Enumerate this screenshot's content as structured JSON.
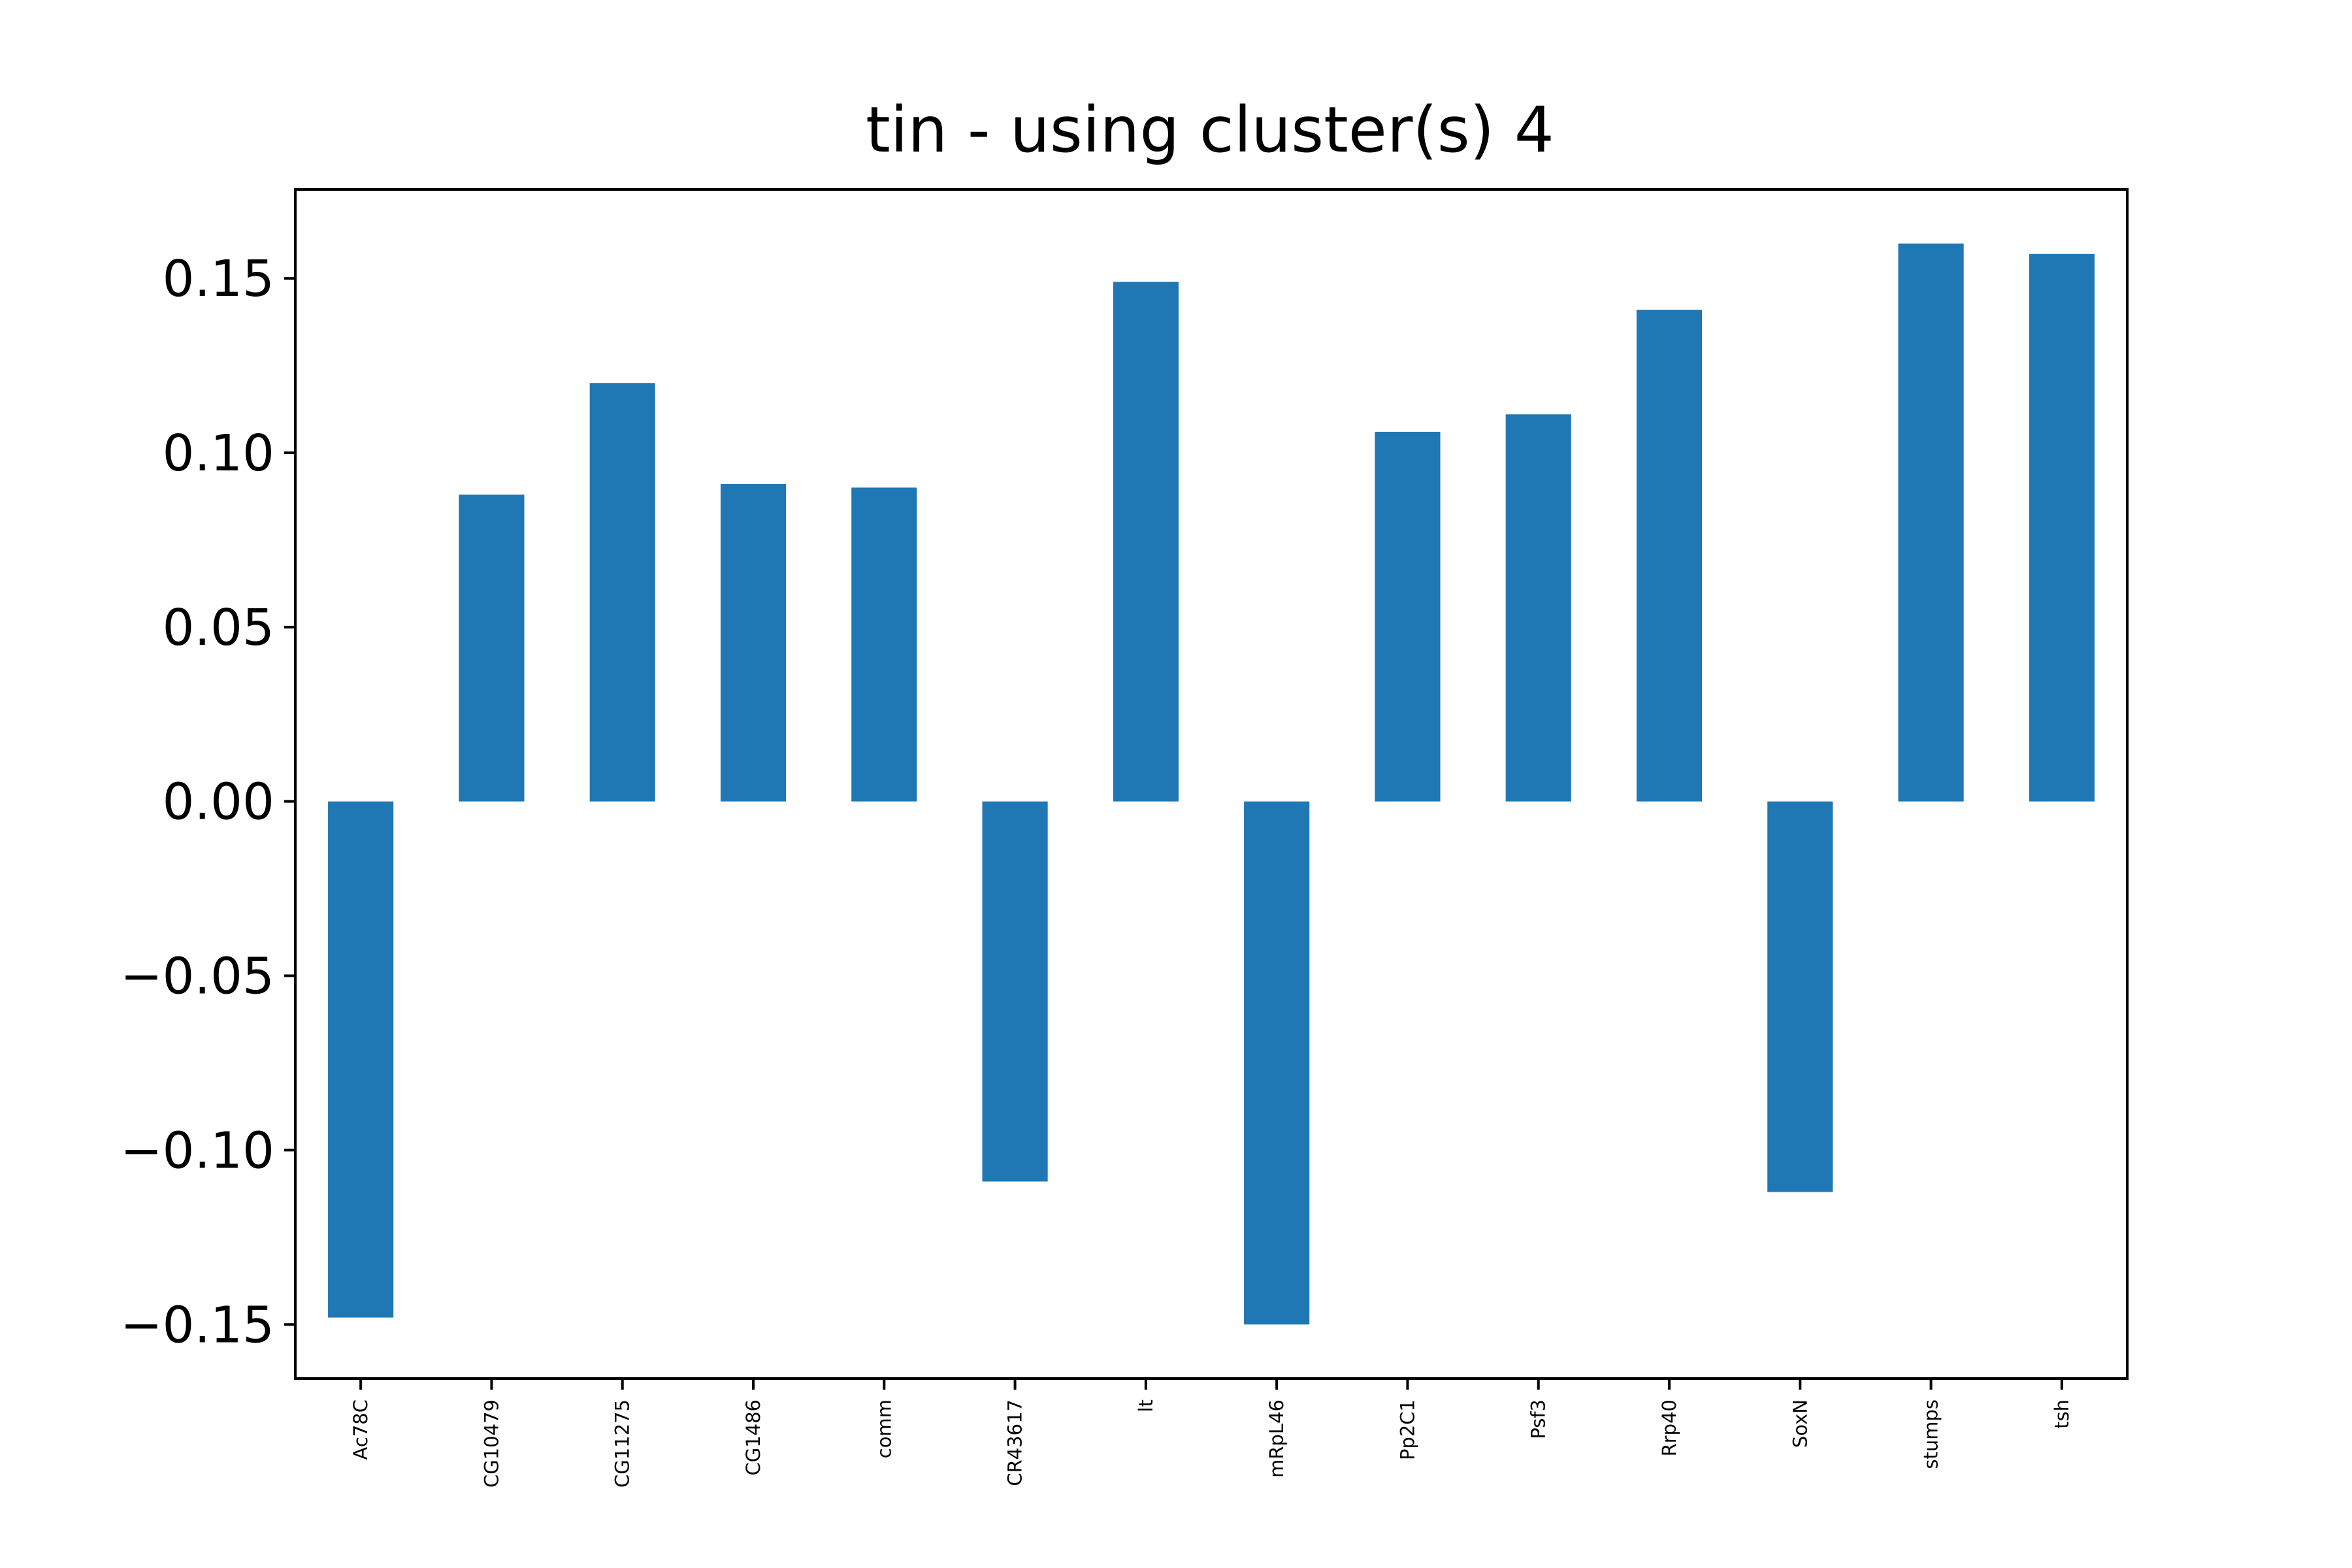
{
  "chart_data": {
    "type": "bar",
    "title": "tin - using cluster(s) 4",
    "xlabel": "",
    "ylabel": "",
    "categories": [
      "Ac78C",
      "CG10479",
      "CG11275",
      "CG1486",
      "comm",
      "CR43617",
      "lt",
      "mRpL46",
      "Pp2C1",
      "Psf3",
      "Rrp40",
      "SoxN",
      "stumps",
      "tsh"
    ],
    "values": [
      -0.148,
      0.088,
      0.12,
      0.091,
      0.09,
      -0.109,
      0.149,
      -0.15,
      0.106,
      0.111,
      0.141,
      -0.112,
      0.16,
      0.157
    ],
    "yticks": [
      -0.15,
      -0.1,
      -0.05,
      0.0,
      0.05,
      0.1,
      0.15
    ],
    "ytick_labels": [
      "−0.15",
      "−0.10",
      "−0.05",
      "0.00",
      "0.05",
      "0.10",
      "0.15"
    ],
    "ylim": [
      -0.1655,
      0.1755
    ],
    "bar_color": "#1f77b4",
    "grid": false,
    "legend": "none"
  }
}
